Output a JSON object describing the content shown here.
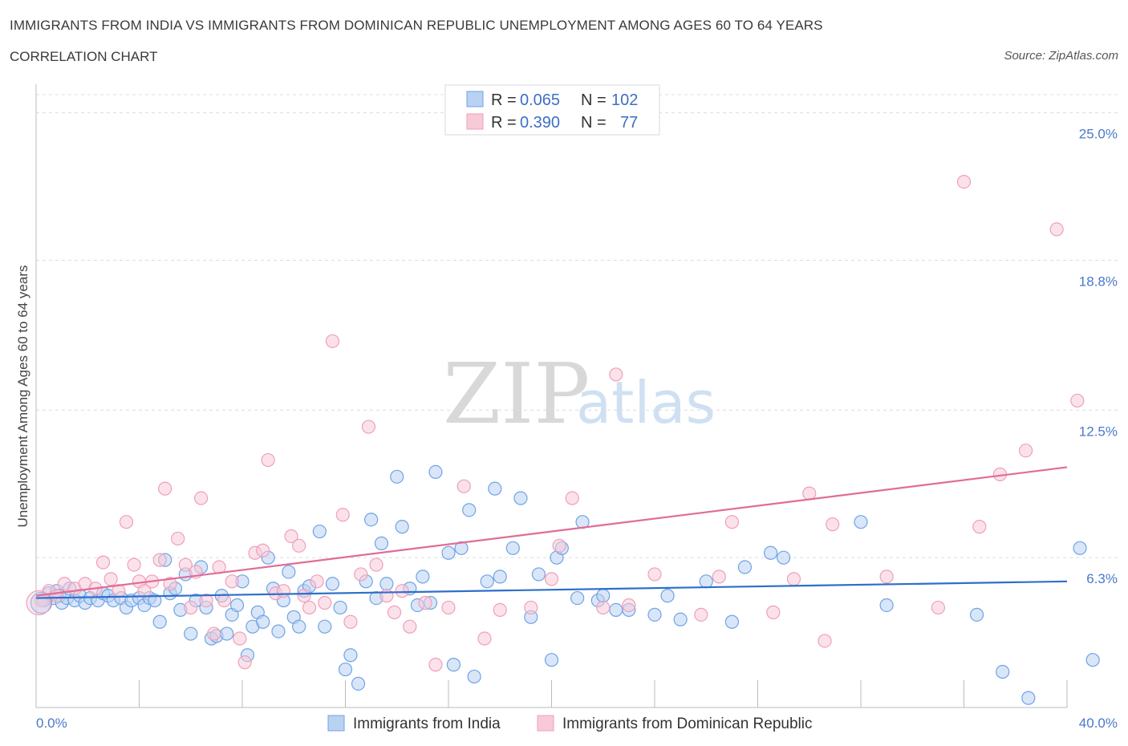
{
  "title": "IMMIGRANTS FROM INDIA VS IMMIGRANTS FROM DOMINICAN REPUBLIC UNEMPLOYMENT AMONG AGES 60 TO 64 YEARS",
  "subtitle": "CORRELATION CHART",
  "source": "Source: ZipAtlas.com",
  "watermark": {
    "zip": "ZIP",
    "atlas": "atlas"
  },
  "chart_data": {
    "type": "scatter",
    "xlabel": "",
    "ylabel": "Unemployment Among Ages 60 to 64 years",
    "xlim": [
      0,
      40
    ],
    "ylim": [
      0,
      26.2
    ],
    "x_tick_labels": {
      "min": "0.0%",
      "max": "40.0%"
    },
    "y_ticks": [
      {
        "value": 6.3,
        "label": "6.3%"
      },
      {
        "value": 12.5,
        "label": "12.5%"
      },
      {
        "value": 18.8,
        "label": "18.8%"
      },
      {
        "value": 25.0,
        "label": "25.0%"
      }
    ],
    "legend": [
      {
        "r_label": "R = ",
        "r_value": "0.065",
        "n_label": "N = ",
        "n_value": "102"
      },
      {
        "r_label": "R = ",
        "r_value": "0.390",
        "n_label": "N = ",
        "n_value": "77"
      }
    ],
    "series": [
      {
        "name": "Immigrants from India",
        "color": "#6fa3e6",
        "fill": "#b9d2f2",
        "line_color": "#2e6fc9",
        "trend": {
          "x": [
            0,
            40
          ],
          "y": [
            4.6,
            5.3
          ]
        },
        "points": [
          [
            0.3,
            4.5
          ],
          [
            0.5,
            4.8
          ],
          [
            0.7,
            4.6
          ],
          [
            0.8,
            4.9
          ],
          [
            0.9,
            4.7
          ],
          [
            1.0,
            4.4
          ],
          [
            1.2,
            4.6
          ],
          [
            1.3,
            5.0
          ],
          [
            1.5,
            4.5
          ],
          [
            1.7,
            4.7
          ],
          [
            1.9,
            4.4
          ],
          [
            2.1,
            4.6
          ],
          [
            2.4,
            4.5
          ],
          [
            2.6,
            4.8
          ],
          [
            2.8,
            4.7
          ],
          [
            3.0,
            4.5
          ],
          [
            3.3,
            4.6
          ],
          [
            3.5,
            4.2
          ],
          [
            3.7,
            4.5
          ],
          [
            4.0,
            4.6
          ],
          [
            4.2,
            4.3
          ],
          [
            4.4,
            4.6
          ],
          [
            4.6,
            4.5
          ],
          [
            4.8,
            3.6
          ],
          [
            5.0,
            6.2
          ],
          [
            5.2,
            4.8
          ],
          [
            5.4,
            5.0
          ],
          [
            5.6,
            4.1
          ],
          [
            5.8,
            5.6
          ],
          [
            6.0,
            3.1
          ],
          [
            6.2,
            4.5
          ],
          [
            6.4,
            5.9
          ],
          [
            6.6,
            4.2
          ],
          [
            6.8,
            2.9
          ],
          [
            7.0,
            3.0
          ],
          [
            7.2,
            4.7
          ],
          [
            7.4,
            3.1
          ],
          [
            7.6,
            3.9
          ],
          [
            7.8,
            4.3
          ],
          [
            8.0,
            5.3
          ],
          [
            8.2,
            2.2
          ],
          [
            8.4,
            3.4
          ],
          [
            8.6,
            4.0
          ],
          [
            8.8,
            3.6
          ],
          [
            9.0,
            6.3
          ],
          [
            9.2,
            5.0
          ],
          [
            9.4,
            3.2
          ],
          [
            9.6,
            4.5
          ],
          [
            9.8,
            5.7
          ],
          [
            10.0,
            3.8
          ],
          [
            10.2,
            3.4
          ],
          [
            10.4,
            4.9
          ],
          [
            10.6,
            5.1
          ],
          [
            11.0,
            7.4
          ],
          [
            11.2,
            3.4
          ],
          [
            11.5,
            5.2
          ],
          [
            11.8,
            4.2
          ],
          [
            12.0,
            1.6
          ],
          [
            12.2,
            2.2
          ],
          [
            12.5,
            1.0
          ],
          [
            12.8,
            5.3
          ],
          [
            13.0,
            7.9
          ],
          [
            13.2,
            4.6
          ],
          [
            13.4,
            6.9
          ],
          [
            13.6,
            5.2
          ],
          [
            14.0,
            9.7
          ],
          [
            14.2,
            7.6
          ],
          [
            14.5,
            5.0
          ],
          [
            14.8,
            4.3
          ],
          [
            15.0,
            5.5
          ],
          [
            15.3,
            4.4
          ],
          [
            15.5,
            9.9
          ],
          [
            16.0,
            6.5
          ],
          [
            16.2,
            1.8
          ],
          [
            16.5,
            6.7
          ],
          [
            16.8,
            8.3
          ],
          [
            17.0,
            1.3
          ],
          [
            17.5,
            5.3
          ],
          [
            17.8,
            9.2
          ],
          [
            18.0,
            5.5
          ],
          [
            18.5,
            6.7
          ],
          [
            18.8,
            8.8
          ],
          [
            19.2,
            3.8
          ],
          [
            19.5,
            5.6
          ],
          [
            20.0,
            2.0
          ],
          [
            20.2,
            6.3
          ],
          [
            20.4,
            6.7
          ],
          [
            21.0,
            4.6
          ],
          [
            21.2,
            7.8
          ],
          [
            21.8,
            4.5
          ],
          [
            22.0,
            4.7
          ],
          [
            22.5,
            4.1
          ],
          [
            23.0,
            4.1
          ],
          [
            24.0,
            3.9
          ],
          [
            24.5,
            4.7
          ],
          [
            25.0,
            3.7
          ],
          [
            26.0,
            5.3
          ],
          [
            27.0,
            3.6
          ],
          [
            27.5,
            5.9
          ],
          [
            28.5,
            6.5
          ],
          [
            29.0,
            6.3
          ],
          [
            32.0,
            7.8
          ],
          [
            33.0,
            4.3
          ],
          [
            36.5,
            3.9
          ],
          [
            37.5,
            1.5
          ],
          [
            38.5,
            0.4
          ],
          [
            40.5,
            6.7
          ],
          [
            41.0,
            2.0
          ]
        ]
      },
      {
        "name": "Immigrants from Dominican Republic",
        "color": "#f09fb8",
        "fill": "#f8cad8",
        "line_color": "#e06c96",
        "trend": {
          "x": [
            0,
            40
          ],
          "y": [
            4.7,
            10.1
          ]
        },
        "points": [
          [
            0.2,
            4.5
          ],
          [
            0.5,
            4.9
          ],
          [
            0.8,
            4.7
          ],
          [
            1.1,
            5.2
          ],
          [
            1.5,
            5.0
          ],
          [
            1.9,
            5.2
          ],
          [
            2.3,
            5.0
          ],
          [
            2.6,
            6.1
          ],
          [
            2.9,
            5.4
          ],
          [
            3.2,
            4.9
          ],
          [
            3.5,
            7.8
          ],
          [
            3.8,
            6.0
          ],
          [
            4.0,
            5.3
          ],
          [
            4.2,
            4.9
          ],
          [
            4.5,
            5.3
          ],
          [
            4.8,
            6.2
          ],
          [
            5.0,
            9.2
          ],
          [
            5.2,
            5.2
          ],
          [
            5.5,
            7.1
          ],
          [
            5.8,
            6.0
          ],
          [
            6.0,
            4.2
          ],
          [
            6.2,
            5.7
          ],
          [
            6.4,
            8.8
          ],
          [
            6.6,
            4.5
          ],
          [
            6.9,
            3.1
          ],
          [
            7.1,
            5.9
          ],
          [
            7.3,
            4.5
          ],
          [
            7.6,
            5.3
          ],
          [
            7.9,
            2.9
          ],
          [
            8.1,
            1.9
          ],
          [
            8.5,
            6.5
          ],
          [
            8.8,
            6.6
          ],
          [
            9.0,
            10.4
          ],
          [
            9.3,
            4.8
          ],
          [
            9.6,
            4.9
          ],
          [
            9.9,
            7.2
          ],
          [
            10.2,
            6.8
          ],
          [
            10.4,
            4.7
          ],
          [
            10.6,
            4.2
          ],
          [
            10.9,
            5.3
          ],
          [
            11.2,
            4.4
          ],
          [
            11.5,
            15.4
          ],
          [
            11.9,
            8.1
          ],
          [
            12.2,
            3.6
          ],
          [
            12.6,
            5.6
          ],
          [
            12.9,
            11.8
          ],
          [
            13.2,
            6.0
          ],
          [
            13.6,
            4.7
          ],
          [
            13.9,
            4.0
          ],
          [
            14.2,
            4.9
          ],
          [
            14.5,
            3.4
          ],
          [
            15.1,
            4.4
          ],
          [
            15.5,
            1.8
          ],
          [
            16.0,
            4.2
          ],
          [
            16.6,
            9.3
          ],
          [
            17.4,
            2.9
          ],
          [
            18.0,
            4.1
          ],
          [
            19.2,
            4.2
          ],
          [
            20.0,
            5.4
          ],
          [
            20.3,
            6.8
          ],
          [
            20.8,
            8.8
          ],
          [
            22.0,
            4.2
          ],
          [
            22.5,
            14.0
          ],
          [
            23.0,
            4.3
          ],
          [
            24.0,
            5.6
          ],
          [
            25.8,
            3.9
          ],
          [
            26.5,
            5.5
          ],
          [
            27.0,
            7.8
          ],
          [
            28.6,
            4.0
          ],
          [
            29.4,
            5.4
          ],
          [
            30.0,
            9.0
          ],
          [
            30.6,
            2.8
          ],
          [
            30.9,
            7.7
          ],
          [
            33.0,
            5.5
          ],
          [
            35.0,
            4.2
          ],
          [
            36.0,
            22.1
          ],
          [
            36.6,
            7.6
          ],
          [
            37.4,
            9.8
          ],
          [
            38.4,
            10.8
          ],
          [
            39.6,
            20.1
          ],
          [
            40.4,
            12.9
          ]
        ]
      }
    ]
  }
}
